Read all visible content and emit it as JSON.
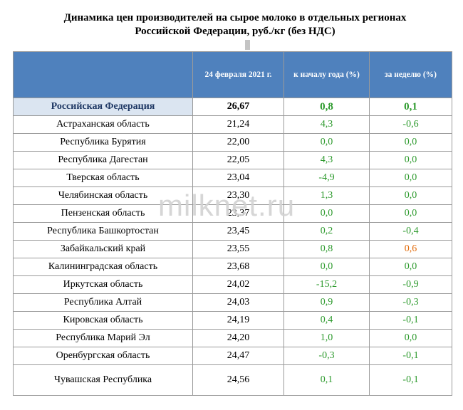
{
  "title": {
    "line1": "Динамика цен производителей на сырое молоко в отдельных регионах",
    "line2": "Российской Федерации, руб./кг (без НДС)"
  },
  "watermark": "milknet.ru",
  "table": {
    "headers": [
      "",
      "24 февраля 2021 г.",
      "к началу года (%)",
      "за неделю (%)"
    ],
    "rows": [
      {
        "region": "Российская Федерация",
        "price": "26,67",
        "ytd": "0,8",
        "week": "0,1"
      },
      {
        "region": "Астраханская область",
        "price": "21,24",
        "ytd": "4,3",
        "week": "-0,6"
      },
      {
        "region": "Республика Бурятия",
        "price": "22,00",
        "ytd": "0,0",
        "week": "0,0"
      },
      {
        "region": "Республика Дагестан",
        "price": "22,05",
        "ytd": "4,3",
        "week": "0,0"
      },
      {
        "region": "Тверская область",
        "price": "23,04",
        "ytd": "-4,9",
        "week": "0,0"
      },
      {
        "region": "Челябинская область",
        "price": "23,30",
        "ytd": "1,3",
        "week": "0,0"
      },
      {
        "region": "Пензенская область",
        "price": "23,37",
        "ytd": "0,0",
        "week": "0,0"
      },
      {
        "region": "Республика Башкортостан",
        "price": "23,45",
        "ytd": "0,2",
        "week": "-0,4"
      },
      {
        "region": "Забайкальский край",
        "price": "23,55",
        "ytd": "0,8",
        "week": "0,6"
      },
      {
        "region": "Калининградская область",
        "price": "23,68",
        "ytd": "0,0",
        "week": "0,0"
      },
      {
        "region": "Иркутская область",
        "price": "24,02",
        "ytd": "-15,2",
        "week": "-0,9"
      },
      {
        "region": "Республика Алтай",
        "price": "24,03",
        "ytd": "0,9",
        "week": "-0,3"
      },
      {
        "region": "Кировская область",
        "price": "24,19",
        "ytd": "0,4",
        "week": "-0,1"
      },
      {
        "region": "Республика Марий Эл",
        "price": "24,20",
        "ytd": "1,0",
        "week": "0,0"
      },
      {
        "region": "Оренбургская область",
        "price": "24,47",
        "ytd": "-0,3",
        "week": "-0,1"
      },
      {
        "region": "Чувашская Республика",
        "price": "24,56",
        "ytd": "0,1",
        "week": "-0,1"
      }
    ]
  },
  "colors": {
    "header_bg": "#4f81bd",
    "highlight_bg": "#dbe5f1",
    "value_green": "#2d9a2d",
    "value_orange": "#e26b0a"
  }
}
